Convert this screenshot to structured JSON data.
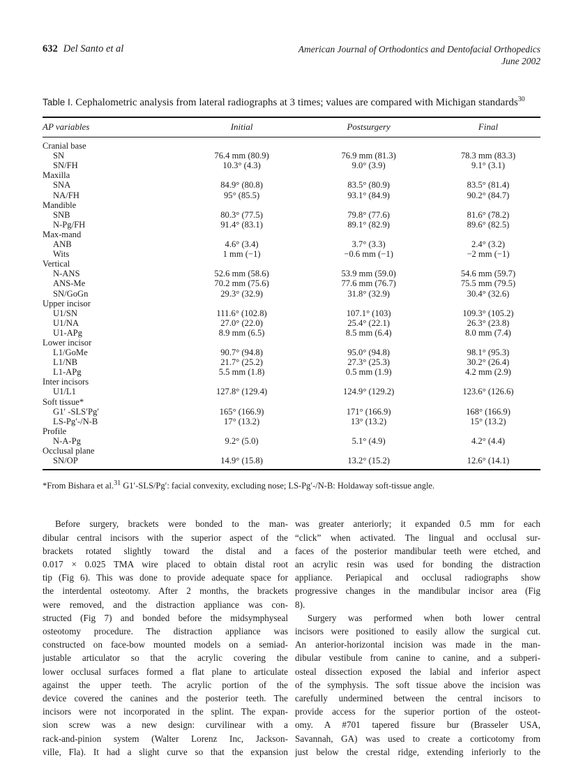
{
  "header": {
    "page_number": "632",
    "authors": "Del Santo et al",
    "journal_line1": "American Journal of Orthodontics and Dentofacial Orthopedics",
    "journal_line2": "June 2002"
  },
  "table": {
    "label": "Table I.",
    "caption": " Cephalometric analysis from lateral radiographs at 3 times; values are compared with Michigan standards",
    "caption_sup": "30",
    "columns": [
      "AP variables",
      "Initial",
      "Postsurgery",
      "Final"
    ],
    "groups": [
      {
        "name": "Cranial base",
        "rows": [
          {
            "label": "SN",
            "initial": "76.4 mm (80.9)",
            "postsurgery": "76.9 mm (81.3)",
            "final": "78.3 mm (83.3)"
          },
          {
            "label": "SN/FH",
            "initial": "10.3° (4.3)",
            "postsurgery": "9.0° (3.9)",
            "final": "9.1° (3.1)"
          }
        ]
      },
      {
        "name": "Maxilla",
        "rows": [
          {
            "label": "SNA",
            "initial": "84.9° (80.8)",
            "postsurgery": "83.5° (80.9)",
            "final": "83.5° (81.4)"
          },
          {
            "label": "NA/FH",
            "initial": "95° (85.5)",
            "postsurgery": "93.1° (84.9)",
            "final": "90.2° (84.7)"
          }
        ]
      },
      {
        "name": "Mandible",
        "rows": [
          {
            "label": "SNB",
            "initial": "80.3° (77.5)",
            "postsurgery": "79.8° (77.6)",
            "final": "81.6° (78.2)"
          },
          {
            "label": "N-Pg/FH",
            "initial": "91.4° (83.1)",
            "postsurgery": "89.1° (82.9)",
            "final": "89.6° (82.5)"
          }
        ]
      },
      {
        "name": "Max-mand",
        "rows": [
          {
            "label": "ANB",
            "initial": "4.6° (3.4)",
            "postsurgery": "3.7° (3.3)",
            "final": "2.4° (3.2)"
          },
          {
            "label": "Wits",
            "initial": "1 mm (−1)",
            "postsurgery": "−0.6 mm (−1)",
            "final": "−2 mm (−1)"
          }
        ]
      },
      {
        "name": "Vertical",
        "rows": [
          {
            "label": "N-ANS",
            "initial": "52.6 mm (58.6)",
            "postsurgery": "53.9 mm (59.0)",
            "final": "54.6 mm (59.7)"
          },
          {
            "label": "ANS-Me",
            "initial": "70.2 mm (75.6)",
            "postsurgery": "77.6 mm (76.7)",
            "final": "75.5 mm (79.5)"
          },
          {
            "label": "SN/GoGn",
            "initial": "29.3° (32.9)",
            "postsurgery": "31.8° (32.9)",
            "final": "30.4° (32.6)"
          }
        ]
      },
      {
        "name": "Upper incisor",
        "rows": [
          {
            "label": "U1/SN",
            "initial": "111.6° (102.8)",
            "postsurgery": "107.1° (103)",
            "final": "109.3° (105.2)"
          },
          {
            "label": "U1/NA",
            "initial": "27.0° (22.0)",
            "postsurgery": "25.4° (22.1)",
            "final": "26.3° (23.8)"
          },
          {
            "label": "U1-APg",
            "initial": "8.9 mm (6.5)",
            "postsurgery": "8.5 mm (6.4)",
            "final": "8.0 mm (7.4)"
          }
        ]
      },
      {
        "name": "Lower incisor",
        "rows": [
          {
            "label": "L1/GoMe",
            "initial": "90.7° (94.8)",
            "postsurgery": "95.0° (94.8)",
            "final": "98.1° (95.3)"
          },
          {
            "label": "L1/NB",
            "initial": "21.7° (25.2)",
            "postsurgery": "27.3° (25.3)",
            "final": "30.2° (26.4)"
          },
          {
            "label": "L1-APg",
            "initial": "5.5 mm (1.8)",
            "postsurgery": "0.5 mm (1.9)",
            "final": "4.2 mm (2.9)"
          }
        ]
      },
      {
        "name": "Inter incisors",
        "rows": [
          {
            "label": "U1/L1",
            "initial": "127.8° (129.4)",
            "postsurgery": "124.9° (129.2)",
            "final": "123.6° (126.6)"
          }
        ]
      },
      {
        "name": "Soft tissue*",
        "rows": [
          {
            "label": "G1′ -SLS′Pg′",
            "initial": "165° (166.9)",
            "postsurgery": "171° (166.9)",
            "final": "168° (166.9)"
          },
          {
            "label": "LS-Pg′-/N-B",
            "initial": "17° (13.2)",
            "postsurgery": "13° (13.2)",
            "final": "15° (13.2)"
          }
        ]
      },
      {
        "name": "Profile",
        "rows": [
          {
            "label": "N-A-Pg",
            "initial": "9.2° (5.0)",
            "postsurgery": "5.1° (4.9)",
            "final": "4.2° (4.4)"
          }
        ]
      },
      {
        "name": "Occlusal plane",
        "rows": [
          {
            "label": "SN/OP",
            "initial": "14.9° (15.8)",
            "postsurgery": "13.2° (15.2)",
            "final": "12.6° (14.1)"
          }
        ]
      }
    ],
    "footnote_pre": "*From Bishara et al.",
    "footnote_sup": "31",
    "footnote_post": " G1′-SLS/Pg′: facial convexity, excluding nose; LS-Pg′-/N-B: Holdaway soft-tissue angle."
  },
  "body": {
    "left": [
      {
        "indent_first": true,
        "ends": false,
        "lines": [
          "Before surgery, brackets were bonded to the man-",
          "dibular central incisors with the superior aspect of the",
          "brackets rotated slightly toward the distal and a",
          "0.017 × 0.025 TMA wire placed to obtain distal root",
          "tip (Fig 6). This was done to provide adequate space for",
          "the interdental osteotomy. After 2 months, the brackets",
          "were removed, and the distraction appliance was con-",
          "structed (Fig 7) and bonded before the midsymphyseal",
          "osteotomy procedure. The distraction appliance was",
          "constructed on face-bow mounted models on a semiad-",
          "justable articulator so that the acrylic covering the",
          "lower occlusal surfaces formed a flat plane to articulate",
          "against the upper teeth. The acrylic portion of the",
          "device covered the canines and the posterior teeth. The",
          "incisors were not incorporated in the splint. The expan-",
          "sion screw was a new design: curvilinear with a",
          "rack-and-pinion system (Walter Lorenz Inc, Jackson-",
          "ville, Fla). It had a slight curve so that the expansion"
        ]
      }
    ],
    "right": [
      {
        "indent_first": false,
        "ends": true,
        "lines": [
          "was greater anteriorly; it expanded 0.5 mm for each",
          "“click” when activated. The lingual and occlusal sur-",
          "faces of the posterior mandibular teeth were etched, and",
          "an acrylic resin was used for bonding the distraction",
          "appliance. Periapical and occlusal radiographs show",
          "progressive changes in the mandibular incisor area (Fig",
          "8)."
        ]
      },
      {
        "indent_first": true,
        "ends": false,
        "lines": [
          "Surgery was performed when both lower central",
          "incisors were positioned to easily allow the surgical cut.",
          "An anterior-horizontal incision was made in the man-",
          "dibular vestibule from canine to canine, and a subperi-",
          "osteal dissection exposed the labial and inferior aspect",
          "of the symphysis. The soft tissue above the incision was",
          "carefully undermined between the central incisors to",
          "provide access for the superior portion of the osteot-",
          "omy. A #701 tapered fissure bur (Brasseler USA,",
          "Savannah, GA) was used to create a corticotomy from",
          "just below the crestal ridge, extending inferiorly to the"
        ]
      }
    ]
  }
}
